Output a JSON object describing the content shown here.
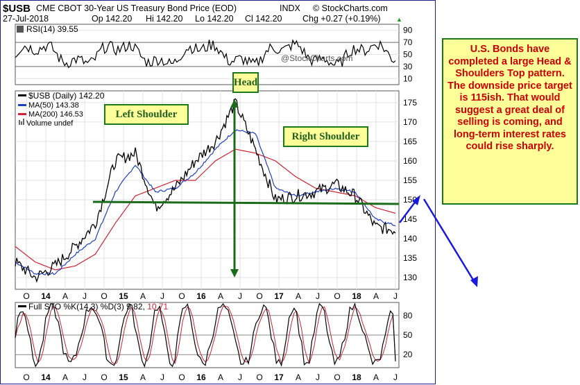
{
  "header": {
    "symbol": "$USB",
    "title": "CME CBOT 30-Year US Treasury Bond Price (EOD)",
    "exchange": "INDX",
    "brand": "© StockCharts.com",
    "date": "27-Jul-2018",
    "open": "Op 142.20",
    "high": "Hi 142.20",
    "low": "Lo 142.20",
    "close": "Cl 142.20",
    "change": "Chg +0.27 (+0.19%)",
    "change_arrow": "▲"
  },
  "rsi_panel": {
    "label": "RSI(14) 39.55",
    "watermark": "@StockCharts.com",
    "ticks": [
      "90",
      "70",
      "50",
      "30",
      "10"
    ]
  },
  "price_panel": {
    "legend": {
      "main": "$USB (Daily) 142.20",
      "ma50": "MA(50) 143.38",
      "ma200": "MA(200) 146.53",
      "volume": "Volume undef"
    },
    "ticks": [
      "175",
      "170",
      "165",
      "160",
      "155",
      "150",
      "145",
      "140",
      "135",
      "130"
    ]
  },
  "x_axis": {
    "labels": [
      "O",
      "14",
      "A",
      "J",
      "O",
      "15",
      "A",
      "J",
      "O",
      "16",
      "A",
      "J",
      "O",
      "17",
      "A",
      "J",
      "O",
      "18",
      "A",
      "J"
    ]
  },
  "sto_panel": {
    "label_prefix": "Full STO %K(14,3) %D(3) 9.82,",
    "label_d": "10.71",
    "ticks": [
      "80",
      "50",
      "20"
    ]
  },
  "annotations": {
    "head": "Head",
    "left_shoulder": "Left Shoulder",
    "right_shoulder": "Right Shoulder",
    "note": "U.S. Bonds have completed a large Head & Shoulders Top pattern. The downside price target is 115ish. That would suggest a great deal of selling is coming, and long-term interest rates could rise sharply."
  },
  "colors": {
    "price": "#000000",
    "ma50": "#1f3fbf",
    "ma200": "#cc2233",
    "annotation_green": "#1a6b1a",
    "arrow_blue": "#1a1adf",
    "note_text": "#cc0000",
    "note_bg": "#ffff99"
  },
  "chart_data": [
    {
      "type": "line",
      "title": "RSI(14)",
      "ylim": [
        0,
        100
      ],
      "reference_lines": [
        30,
        70
      ],
      "last_value": 39.55
    },
    {
      "type": "line",
      "title": "$USB (Daily)",
      "x": [
        "2013-10",
        "2014-01",
        "2014-04",
        "2014-07",
        "2014-10",
        "2015-01",
        "2015-04",
        "2015-07",
        "2015-10",
        "2016-01",
        "2016-04",
        "2016-07",
        "2016-10",
        "2017-01",
        "2017-04",
        "2017-07",
        "2017-10",
        "2018-01",
        "2018-04",
        "2018-07"
      ],
      "ylim": [
        127,
        178
      ],
      "series": [
        {
          "name": "$USB (Daily)",
          "values": [
            134,
            130,
            133,
            138,
            144,
            160,
            162,
            148,
            153,
            160,
            165,
            175,
            163,
            150,
            151,
            152,
            154,
            151,
            143,
            142.2
          ]
        },
        {
          "name": "MA(50)",
          "values": [
            134,
            131,
            131,
            136,
            140,
            152,
            159,
            152,
            153,
            157,
            163,
            168,
            167,
            153,
            151,
            152,
            153,
            152,
            145,
            143.38
          ]
        },
        {
          "name": "MA(200)",
          "values": [
            138,
            134,
            132,
            133,
            136,
            144,
            151,
            153,
            155,
            155,
            160,
            163,
            162,
            160,
            156,
            153,
            152,
            151,
            148,
            146.53
          ]
        }
      ],
      "last_value": 142.2
    },
    {
      "type": "line",
      "title": "Full STO %K(14,3) %D(3)",
      "ylim": [
        0,
        100
      ],
      "reference_lines": [
        20,
        50,
        80
      ],
      "series": [
        {
          "name": "%K",
          "last_value": 9.82
        },
        {
          "name": "%D",
          "last_value": 10.71
        }
      ]
    }
  ]
}
